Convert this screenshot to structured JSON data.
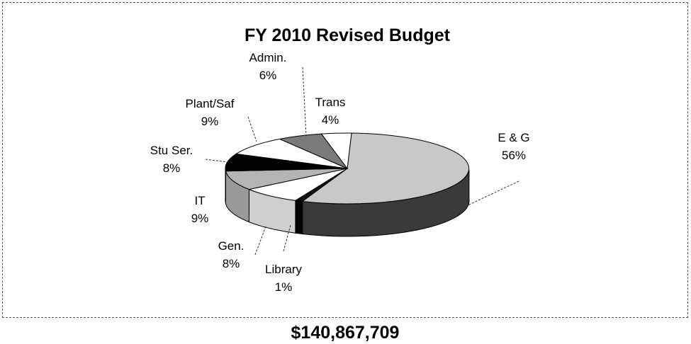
{
  "chart_data": {
    "type": "pie",
    "title": "FY 2010 Revised Budget",
    "total_label": "$140,867,709",
    "three_d": true,
    "slices": [
      {
        "label": "E & G",
        "percent_label": "56%",
        "value": 56,
        "color": "#c8c8c8",
        "side_color": "#3a3a3a"
      },
      {
        "label": "Library",
        "percent_label": "1%",
        "value": 1,
        "color": "#111111",
        "side_color": "#000000"
      },
      {
        "label": "Gen.",
        "percent_label": "8%",
        "value": 8,
        "color": "#ffffff",
        "side_color": "#cfcfcf"
      },
      {
        "label": "IT",
        "percent_label": "9%",
        "value": 9,
        "color": "#b4b4b4",
        "side_color": "#9a9a9a"
      },
      {
        "label": "Stu Ser.",
        "percent_label": "8%",
        "value": 8,
        "color": "#000000",
        "side_color": "#000000"
      },
      {
        "label": "Plant/Saf",
        "percent_label": "9%",
        "value": 9,
        "color": "#ffffff",
        "side_color": "#dddddd"
      },
      {
        "label": "Admin.",
        "percent_label": "6%",
        "value": 6,
        "color": "#7a7a7a",
        "side_color": "#555555"
      },
      {
        "label": "Trans",
        "percent_label": "4%",
        "value": 4,
        "color": "#ffffff",
        "side_color": "#dddddd"
      }
    ]
  }
}
